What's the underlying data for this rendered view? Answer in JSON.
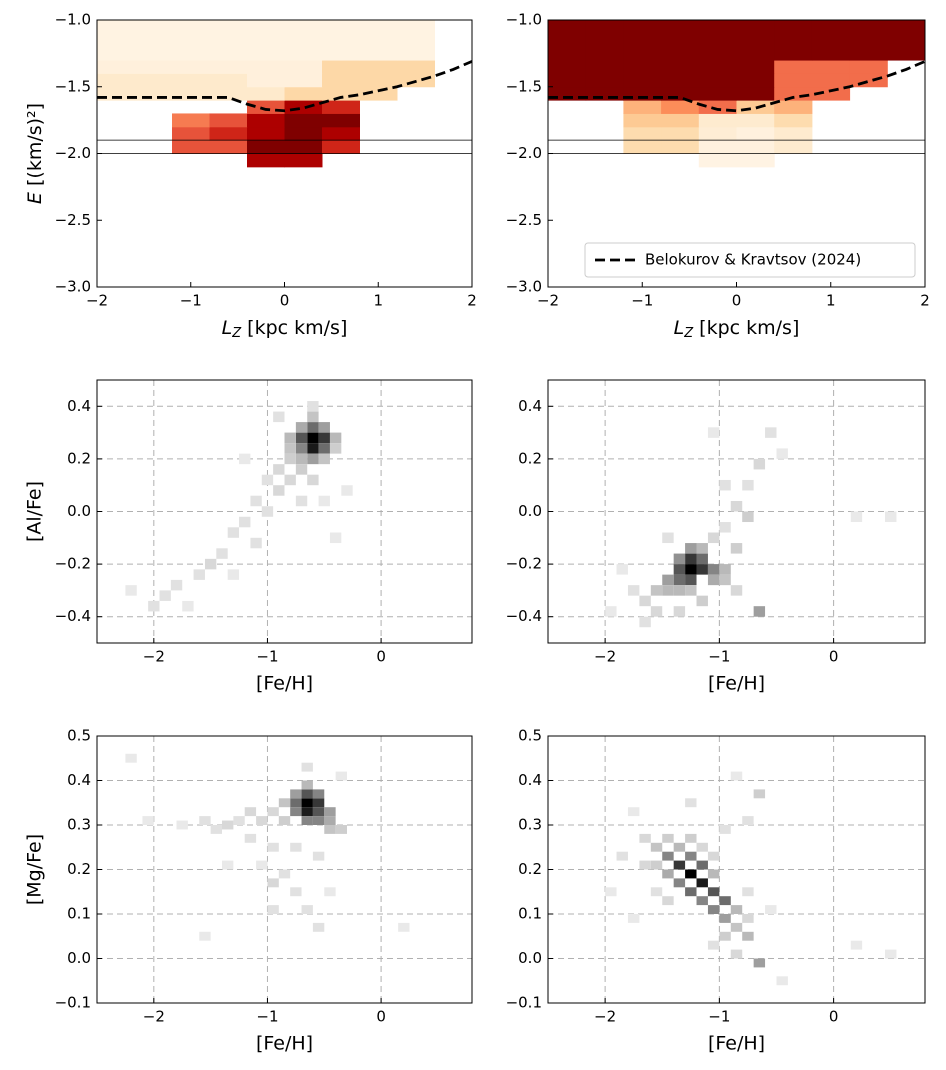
{
  "chart_data": [
    {
      "type": "heatmap",
      "cmap": "OrRd",
      "xlabel": {
        "symbol": "L",
        "sub": "Z",
        "unit": "[kpc km/s]"
      },
      "ylabel": {
        "symbol": "E",
        "unit": "[(km/s)²]"
      },
      "xlim": [
        -2,
        2
      ],
      "ylim": [
        -3,
        -1
      ],
      "xticks": [
        {
          "value": -2,
          "label": "−2"
        },
        {
          "value": -1,
          "label": "−1"
        },
        0,
        1,
        2
      ],
      "yticks": [
        {
          "value": -3,
          "label": "−3.0"
        },
        {
          "value": -2.5,
          "label": "−2.5"
        },
        {
          "value": -2,
          "label": "−2.0"
        },
        {
          "value": -1.5,
          "label": "−1.5"
        },
        {
          "value": -1,
          "label": "−1.0"
        }
      ],
      "xbins": [
        -2,
        -1.6,
        -1.2,
        -0.8,
        -0.4,
        0,
        0.4,
        0.8,
        1.2,
        1.6,
        2
      ],
      "ybins": [
        -2.1,
        -2.0,
        -1.9,
        -1.8,
        -1.7,
        -1.6,
        -1.5,
        -1.4,
        -1.3,
        -1.2,
        -1.1,
        -1.0
      ],
      "z": [
        [
          null,
          null,
          null,
          null,
          8,
          8,
          null,
          null,
          null,
          null
        ],
        [
          null,
          null,
          6,
          6,
          9,
          9,
          7,
          null,
          null,
          null
        ],
        [
          null,
          null,
          6,
          7,
          8,
          9,
          8,
          null,
          null,
          null
        ],
        [
          null,
          null,
          5,
          6,
          8,
          9,
          9,
          null,
          null,
          null
        ],
        [
          null,
          null,
          null,
          null,
          6,
          8,
          7,
          null,
          null,
          null
        ],
        [
          1,
          1,
          1,
          1,
          1,
          2,
          2,
          2,
          null,
          null
        ],
        [
          1,
          1,
          1,
          1,
          0.5,
          0.5,
          2,
          2,
          2,
          null
        ],
        [
          0.5,
          0.5,
          0.5,
          0.5,
          0.5,
          0.5,
          2,
          2,
          2,
          null
        ],
        [
          0.3,
          0.3,
          0.3,
          0.3,
          0.3,
          0.3,
          0.3,
          0.3,
          0.3,
          null
        ],
        [
          0.3,
          0.3,
          0.3,
          0.3,
          0.3,
          0.3,
          0.3,
          0.3,
          0.3,
          null
        ],
        [
          0.3,
          0.3,
          0.3,
          0.3,
          0.3,
          0.3,
          0.3,
          0.3,
          0.3,
          null
        ]
      ],
      "hlines": [
        -1.9,
        -2.0
      ],
      "series": [
        {
          "color": "#000000",
          "style": "dashed",
          "x": [
            -2,
            -1.6,
            -1.2,
            -0.8,
            -0.6,
            -0.4,
            -0.2,
            0,
            0.2,
            0.4,
            0.6,
            0.8,
            1.0,
            1.2,
            1.4,
            1.6,
            1.8,
            2.0
          ],
          "values": [
            -1.58,
            -1.58,
            -1.58,
            -1.58,
            -1.58,
            -1.63,
            -1.67,
            -1.68,
            -1.66,
            -1.62,
            -1.58,
            -1.56,
            -1.53,
            -1.5,
            -1.46,
            -1.42,
            -1.37,
            -1.31
          ]
        }
      ]
    },
    {
      "type": "heatmap",
      "cmap": "OrRd",
      "xlabel": {
        "symbol": "L",
        "sub": "Z",
        "unit": "[kpc km/s]"
      },
      "xlim": [
        -2,
        2
      ],
      "ylim": [
        -3,
        -1
      ],
      "xticks": [
        {
          "value": -2,
          "label": "−2"
        },
        {
          "value": -1,
          "label": "−1"
        },
        0,
        1,
        2
      ],
      "yticks": [
        {
          "value": -3,
          "label": "−3.0"
        },
        {
          "value": -2.5,
          "label": "−2.5"
        },
        {
          "value": -2,
          "label": "−2.0"
        },
        {
          "value": -1.5,
          "label": "−1.5"
        },
        {
          "value": -1,
          "label": "−1.0"
        }
      ],
      "xbins": [
        -2,
        -1.6,
        -1.2,
        -0.8,
        -0.4,
        0,
        0.4,
        0.8,
        1.2,
        1.6,
        2
      ],
      "ybins": [
        -2.1,
        -2.0,
        -1.9,
        -1.8,
        -1.7,
        -1.6,
        -1.5,
        -1.4,
        -1.3,
        -1.2,
        -1.1,
        -1.0
      ],
      "z": [
        [
          null,
          null,
          null,
          null,
          0.3,
          0.3,
          null,
          null,
          null,
          null
        ],
        [
          null,
          null,
          2,
          2,
          0.5,
          0.5,
          1,
          null,
          null,
          null
        ],
        [
          null,
          null,
          2,
          2,
          0.8,
          0.5,
          1,
          null,
          null,
          null
        ],
        [
          null,
          null,
          3,
          3,
          1,
          1,
          2,
          null,
          null,
          null
        ],
        [
          null,
          null,
          4,
          5,
          6,
          3,
          4,
          null,
          null,
          null
        ],
        [
          10,
          10,
          10,
          10,
          10,
          10,
          6,
          6,
          null,
          null
        ],
        [
          10,
          10,
          10,
          10,
          10,
          10,
          6,
          6,
          6,
          null
        ],
        [
          10,
          10,
          10,
          10,
          10,
          10,
          6,
          6,
          6,
          null
        ],
        [
          10,
          10,
          10,
          10,
          10,
          10,
          10,
          10,
          10,
          10
        ],
        [
          10,
          10,
          10,
          10,
          10,
          10,
          10,
          10,
          10,
          10
        ],
        [
          10,
          10,
          10,
          10,
          10,
          10,
          10,
          10,
          10,
          10
        ]
      ],
      "hlines": [
        -1.9,
        -2.0
      ],
      "legend": "lower right",
      "series": [
        {
          "name": "Belokurov & Kravtsov (2024)",
          "color": "#000000",
          "style": "dashed",
          "x": [
            -2,
            -1.6,
            -1.2,
            -0.8,
            -0.6,
            -0.4,
            -0.2,
            0,
            0.2,
            0.4,
            0.6,
            0.8,
            1.0,
            1.2,
            1.4,
            1.6,
            1.8,
            2.0
          ],
          "values": [
            -1.58,
            -1.58,
            -1.58,
            -1.58,
            -1.58,
            -1.63,
            -1.67,
            -1.68,
            -1.66,
            -1.62,
            -1.58,
            -1.56,
            -1.53,
            -1.5,
            -1.46,
            -1.42,
            -1.37,
            -1.31
          ]
        }
      ]
    },
    {
      "type": "hist2d",
      "cmap": "Greys",
      "grid": true,
      "xlabel": "[Fe/H]",
      "ylabel": "[Al/Fe]",
      "xlim": [
        -2.5,
        0.8
      ],
      "ylim": [
        -0.5,
        0.5
      ],
      "xticks": [
        {
          "value": -2,
          "label": "−2"
        },
        {
          "value": -1,
          "label": "−1"
        },
        0
      ],
      "yticks": [
        {
          "value": -0.4,
          "label": "−0.4"
        },
        {
          "value": -0.2,
          "label": "−0.2"
        },
        {
          "value": 0,
          "label": "0.0"
        },
        0.2,
        0.4
      ],
      "bin_size": [
        0.1,
        0.04
      ],
      "x": [
        -0.6,
        -0.5,
        -0.7,
        -0.6,
        -0.5,
        -0.7,
        -0.6,
        -0.5,
        -0.7,
        -0.6,
        -0.8,
        -0.8,
        -0.4,
        -0.4,
        -0.6,
        -0.7,
        -0.5,
        -0.8,
        -0.9,
        -0.7,
        -0.6,
        -0.8,
        -1.0,
        -0.9,
        -0.7,
        -1.1,
        -1.0,
        -1.2,
        -1.3,
        -1.1,
        -1.4,
        -1.5,
        -1.6,
        -1.8,
        -1.9,
        -2.0,
        -1.7,
        -2.2,
        -1.3,
        -0.9,
        -0.5,
        -0.3,
        -1.2,
        -0.4,
        -0.6
      ],
      "y": [
        0.28,
        0.28,
        0.28,
        0.24,
        0.24,
        0.24,
        0.32,
        0.32,
        0.32,
        0.36,
        0.28,
        0.24,
        0.28,
        0.24,
        0.2,
        0.2,
        0.2,
        0.2,
        0.16,
        0.16,
        0.12,
        0.12,
        0.12,
        0.08,
        0.04,
        0.04,
        0.0,
        -0.04,
        -0.08,
        -0.12,
        -0.16,
        -0.2,
        -0.24,
        -0.28,
        -0.32,
        -0.36,
        -0.36,
        -0.3,
        -0.24,
        0.36,
        0.04,
        0.08,
        0.2,
        -0.1,
        0.4
      ],
      "values": [
        20,
        16,
        14,
        18,
        12,
        10,
        12,
        8,
        7,
        5,
        6,
        5,
        6,
        4,
        8,
        6,
        5,
        4,
        3,
        4,
        3,
        3,
        2,
        3,
        2,
        2,
        2,
        2,
        2,
        2,
        2,
        3,
        2,
        2,
        2,
        2,
        1,
        1,
        1,
        2,
        1,
        1,
        1,
        1,
        2
      ]
    },
    {
      "type": "hist2d",
      "cmap": "Greys",
      "grid": true,
      "xlabel": "[Fe/H]",
      "xlim": [
        -2.5,
        0.8
      ],
      "ylim": [
        -0.5,
        0.5
      ],
      "xticks": [
        {
          "value": -2,
          "label": "−2"
        },
        {
          "value": -1,
          "label": "−1"
        },
        0
      ],
      "yticks": [
        {
          "value": -0.4,
          "label": "−0.4"
        },
        {
          "value": -0.2,
          "label": "−0.2"
        },
        {
          "value": 0,
          "label": "0.0"
        },
        0.2,
        0.4
      ],
      "bin_size": [
        0.1,
        0.04
      ],
      "x": [
        -1.25,
        -1.15,
        -1.35,
        -1.25,
        -1.15,
        -1.35,
        -1.25,
        -1.05,
        -1.45,
        -1.05,
        -1.35,
        -1.25,
        -1.15,
        -0.95,
        -0.95,
        -1.55,
        -1.45,
        -1.35,
        -1.25,
        -1.65,
        -1.55,
        -1.35,
        -1.15,
        -0.85,
        -0.65,
        -1.05,
        -0.95,
        -0.85,
        -0.75,
        -0.65,
        -0.75,
        -0.95,
        -0.55,
        -0.85,
        -1.75,
        -1.85,
        -1.45,
        -1.65,
        -1.95,
        -0.45,
        -1.05,
        0.2,
        0.5
      ],
      "y": [
        -0.22,
        -0.22,
        -0.22,
        -0.18,
        -0.18,
        -0.26,
        -0.26,
        -0.22,
        -0.26,
        -0.26,
        -0.18,
        -0.14,
        -0.14,
        -0.22,
        -0.26,
        -0.3,
        -0.3,
        -0.3,
        -0.3,
        -0.34,
        -0.38,
        -0.38,
        -0.34,
        -0.3,
        -0.38,
        -0.1,
        -0.06,
        0.02,
        0.1,
        0.18,
        -0.02,
        0.1,
        0.3,
        -0.14,
        -0.3,
        -0.22,
        -0.1,
        -0.42,
        -0.38,
        0.22,
        0.3,
        -0.02,
        -0.02
      ],
      "values": [
        20,
        16,
        14,
        16,
        12,
        12,
        14,
        10,
        8,
        7,
        9,
        8,
        6,
        6,
        5,
        5,
        6,
        6,
        5,
        3,
        3,
        3,
        4,
        3,
        8,
        3,
        2,
        3,
        2,
        3,
        4,
        2,
        2,
        4,
        2,
        1,
        2,
        2,
        1,
        1,
        1,
        1,
        1
      ]
    },
    {
      "type": "hist2d",
      "cmap": "Greys",
      "grid": true,
      "xlabel": "[Fe/H]",
      "ylabel": "[Mg/Fe]",
      "xlim": [
        -2.5,
        0.8
      ],
      "ylim": [
        -0.1,
        0.5
      ],
      "xticks": [
        {
          "value": -2,
          "label": "−2"
        },
        {
          "value": -1,
          "label": "−1"
        },
        0
      ],
      "yticks": [
        {
          "value": -0.1,
          "label": "−0.1"
        },
        {
          "value": 0,
          "label": "0.0"
        },
        0.1,
        0.2,
        0.3,
        0.4,
        0.5
      ],
      "bin_size": [
        0.1,
        0.02
      ],
      "x": [
        -0.65,
        -0.55,
        -0.75,
        -0.65,
        -0.55,
        -0.65,
        -0.55,
        -0.75,
        -0.75,
        -0.45,
        -0.45,
        -0.55,
        -0.65,
        -0.45,
        -0.35,
        -0.65,
        -0.85,
        -0.85,
        -0.95,
        -1.05,
        -1.15,
        -1.25,
        -1.35,
        -1.45,
        -1.55,
        -1.75,
        -2.05,
        -1.15,
        -0.95,
        -0.75,
        -0.55,
        -0.85,
        -0.95,
        -0.75,
        -0.65,
        -0.55,
        -0.95,
        -0.45,
        -1.05,
        -1.35,
        -2.2,
        -0.65,
        -1.55,
        0.2,
        -0.35
      ],
      "y": [
        0.35,
        0.35,
        0.35,
        0.33,
        0.33,
        0.37,
        0.37,
        0.33,
        0.37,
        0.33,
        0.31,
        0.31,
        0.31,
        0.29,
        0.29,
        0.39,
        0.35,
        0.31,
        0.33,
        0.31,
        0.33,
        0.31,
        0.3,
        0.29,
        0.31,
        0.3,
        0.31,
        0.27,
        0.25,
        0.25,
        0.23,
        0.19,
        0.17,
        0.15,
        0.11,
        0.07,
        0.11,
        0.15,
        0.21,
        0.21,
        0.45,
        0.43,
        0.05,
        0.07,
        0.41
      ],
      "values": [
        20,
        16,
        12,
        18,
        14,
        14,
        10,
        10,
        8,
        8,
        7,
        10,
        10,
        5,
        4,
        6,
        5,
        4,
        3,
        3,
        3,
        2,
        3,
        2,
        2,
        1,
        1,
        2,
        2,
        2,
        2,
        2,
        3,
        2,
        2,
        2,
        2,
        1,
        1,
        1,
        1,
        2,
        1,
        1,
        1
      ]
    },
    {
      "type": "hist2d",
      "cmap": "Greys",
      "grid": true,
      "xlabel": "[Fe/H]",
      "xlim": [
        -2.5,
        0.8
      ],
      "ylim": [
        -0.1,
        0.5
      ],
      "xticks": [
        {
          "value": -2,
          "label": "−2"
        },
        {
          "value": -1,
          "label": "−1"
        },
        0
      ],
      "yticks": [
        {
          "value": -0.1,
          "label": "−0.1"
        },
        {
          "value": 0,
          "label": "0.0"
        },
        0.1,
        0.2,
        0.3,
        0.4,
        0.5
      ],
      "bin_size": [
        0.1,
        0.02
      ],
      "x": [
        -1.25,
        -1.15,
        -1.35,
        -1.05,
        -1.45,
        -0.95,
        -1.25,
        -1.15,
        -1.35,
        -1.25,
        -1.05,
        -1.15,
        -0.95,
        -1.45,
        -1.55,
        -1.55,
        -1.35,
        -1.05,
        -0.85,
        -0.85,
        -0.95,
        -0.75,
        -0.75,
        -1.65,
        -1.65,
        -1.45,
        -1.25,
        -1.15,
        -1.05,
        -1.45,
        -1.55,
        -0.65,
        -0.85,
        -1.05,
        -0.75,
        -0.65,
        -0.75,
        -0.95,
        -1.75,
        -1.85,
        -1.95,
        -1.75,
        -0.55,
        -0.45,
        0.2,
        0.5,
        -1.25,
        -0.85
      ],
      "y": [
        0.19,
        0.17,
        0.21,
        0.15,
        0.23,
        0.13,
        0.23,
        0.21,
        0.17,
        0.15,
        0.11,
        0.13,
        0.09,
        0.19,
        0.25,
        0.21,
        0.25,
        0.19,
        0.11,
        0.07,
        0.05,
        0.05,
        0.09,
        0.27,
        0.21,
        0.27,
        0.27,
        0.25,
        0.23,
        0.13,
        0.15,
        -0.01,
        0.01,
        0.03,
        0.15,
        0.37,
        0.31,
        0.29,
        0.33,
        0.23,
        0.15,
        0.09,
        0.11,
        -0.05,
        0.03,
        0.01,
        0.35,
        0.41
      ],
      "values": [
        20,
        18,
        16,
        14,
        10,
        12,
        10,
        12,
        10,
        12,
        10,
        10,
        8,
        7,
        5,
        4,
        6,
        6,
        6,
        5,
        4,
        6,
        3,
        3,
        3,
        4,
        4,
        3,
        3,
        3,
        2,
        8,
        3,
        2,
        2,
        4,
        2,
        2,
        1,
        2,
        1,
        1,
        1,
        1,
        1,
        1,
        2,
        1
      ]
    }
  ]
}
